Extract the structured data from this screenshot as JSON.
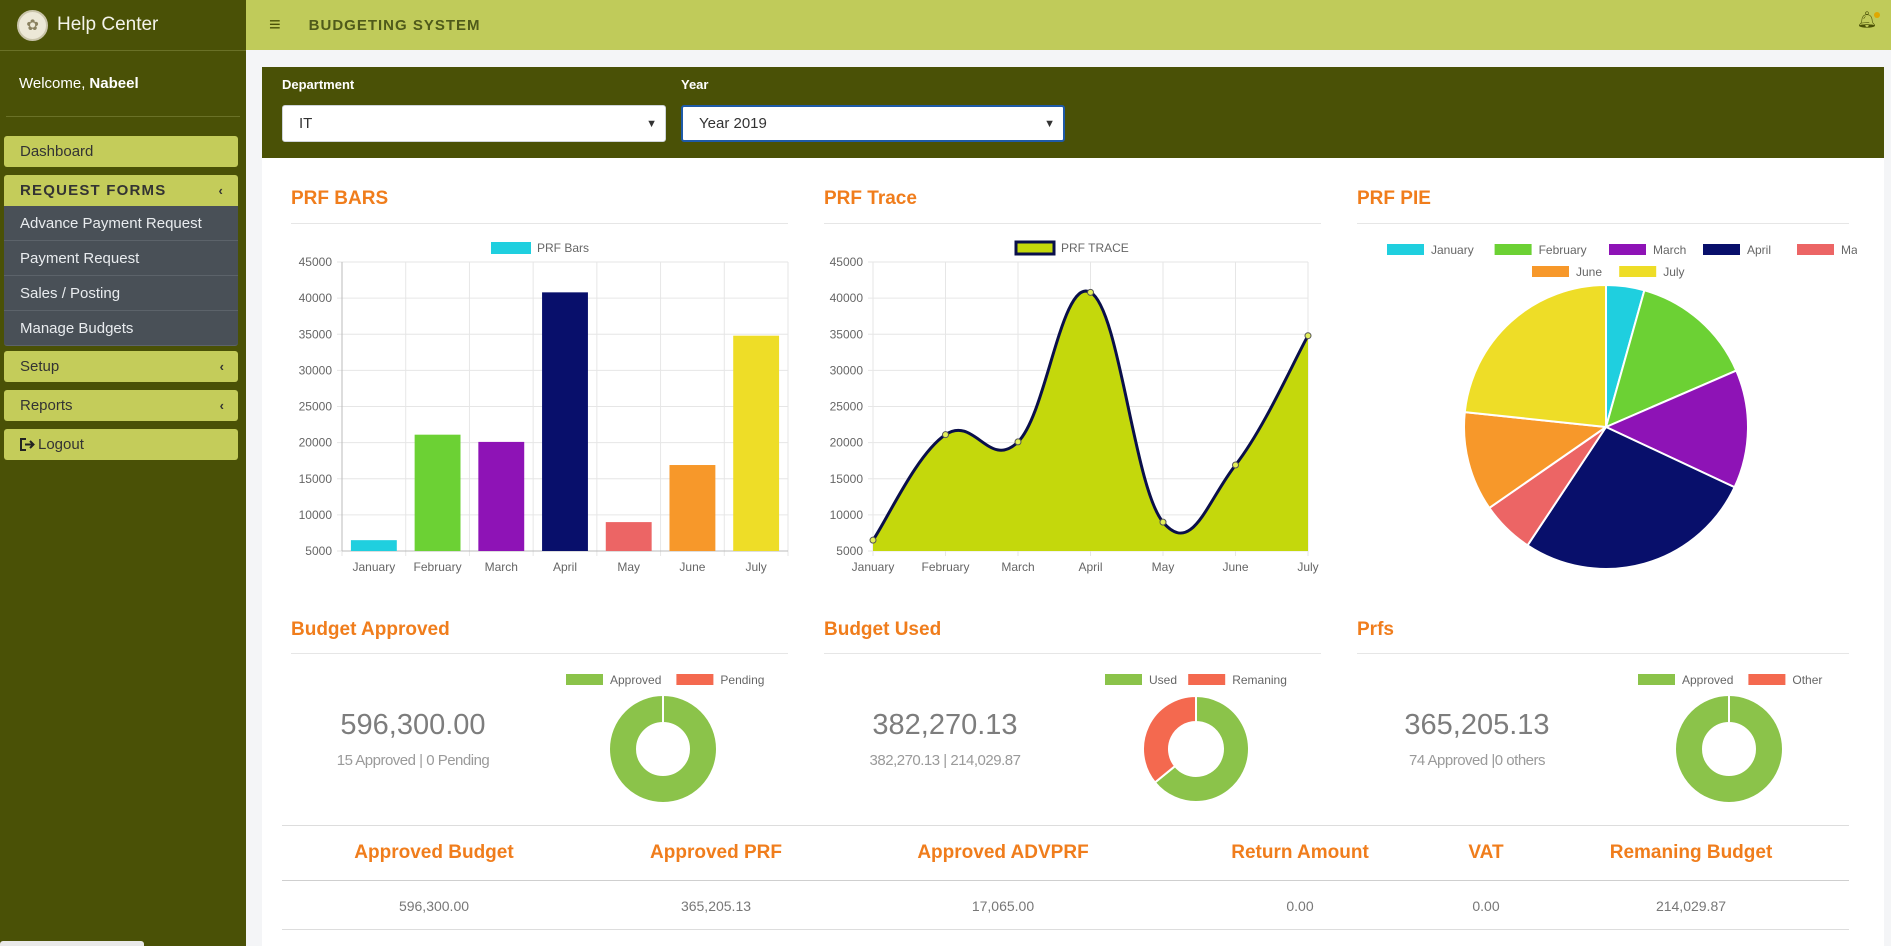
{
  "sidebar": {
    "title": "Help Center",
    "welcome_prefix": "Welcome,",
    "user": "Nabeel",
    "dashboard": "Dashboard",
    "request_forms": "REQUEST FORMS",
    "sub_items": [
      "Advance Payment Request",
      "Payment Request",
      "Sales / Posting",
      "Manage Budgets"
    ],
    "setup": "Setup",
    "reports": "Reports",
    "logout": "Logout"
  },
  "topbar": {
    "title": "BUDGETING SYSTEM"
  },
  "filters": {
    "department_label": "Department",
    "department_value": "IT",
    "year_label": "Year",
    "year_value": "Year 2019"
  },
  "panels": {
    "bars_title": "PRF BARS",
    "trace_title": "PRF Trace",
    "pie_title": "PRF PIE",
    "approved_title": "Budget Approved",
    "used_title": "Budget Used",
    "prfs_title": "Prfs"
  },
  "kpis": {
    "approved_value": "596,300.00",
    "approved_sub": "15 Approved | 0 Pending",
    "used_value": "382,270.13",
    "used_sub": "382,270.13 | 214,029.87",
    "prfs_value": "365,205.13",
    "prfs_sub": "74 Approved |0 others"
  },
  "chart_data": [
    {
      "type": "bar",
      "title": "PRF BARS",
      "categories": [
        "January",
        "February",
        "March",
        "April",
        "May",
        "June",
        "July"
      ],
      "series": [
        {
          "name": "PRF Bars",
          "values": [
            6500,
            21100,
            20100,
            40800,
            9000,
            16900,
            34800
          ]
        }
      ],
      "colors": [
        "#1fcfdf",
        "#6cd134",
        "#8e13b6",
        "#080f6b",
        "#ec6565",
        "#f7982a",
        "#eedd27"
      ],
      "ylim": [
        5000,
        45000
      ],
      "yticks": [
        5000,
        10000,
        15000,
        20000,
        25000,
        30000,
        35000,
        40000,
        45000
      ],
      "grid": true,
      "legend": "top"
    },
    {
      "type": "area",
      "title": "PRF Trace",
      "categories": [
        "January",
        "February",
        "March",
        "April",
        "May",
        "June",
        "July"
      ],
      "series": [
        {
          "name": "PRF TRACE",
          "values": [
            6500,
            21100,
            20100,
            40800,
            9000,
            16900,
            34800
          ]
        }
      ],
      "fill": "#c4d80c",
      "line": "#0a0f4a",
      "ylim": [
        5000,
        45000
      ],
      "yticks": [
        5000,
        10000,
        15000,
        20000,
        25000,
        30000,
        35000,
        40000,
        45000
      ],
      "grid": true,
      "legend": "top"
    },
    {
      "type": "pie",
      "title": "PRF PIE",
      "labels": [
        "January",
        "February",
        "March",
        "April",
        "May",
        "June",
        "July"
      ],
      "values": [
        6500,
        21100,
        20100,
        40800,
        9000,
        16900,
        34800
      ],
      "colors": [
        "#1fcfdf",
        "#6cd134",
        "#8e13b6",
        "#080f6b",
        "#ec6565",
        "#f7982a",
        "#eedd27"
      ],
      "legend": "top"
    },
    {
      "type": "pie",
      "title": "Budget Approved",
      "labels": [
        "Approved",
        "Pending"
      ],
      "values": [
        15,
        0
      ],
      "colors": [
        "#8bc34a",
        "#f4694f"
      ],
      "legend": "top-right"
    },
    {
      "type": "pie",
      "title": "Budget Used",
      "labels": [
        "Used",
        "Remaning"
      ],
      "values": [
        382270.13,
        214029.87
      ],
      "colors": [
        "#8bc34a",
        "#f4694f"
      ],
      "legend": "top-right"
    },
    {
      "type": "pie",
      "title": "Prfs",
      "labels": [
        "Approved",
        "Other"
      ],
      "values": [
        74,
        0
      ],
      "colors": [
        "#8bc34a",
        "#f4694f"
      ],
      "legend": "top-right"
    }
  ],
  "summary_table": {
    "headers": [
      "Approved Budget",
      "Approved PRF",
      "Approved ADVPRF",
      "Return Amount",
      "VAT",
      "Remaning Budget"
    ],
    "values": [
      "596,300.00",
      "365,205.13",
      "17,065.00",
      "0.00",
      "0.00",
      "214,029.87"
    ]
  }
}
